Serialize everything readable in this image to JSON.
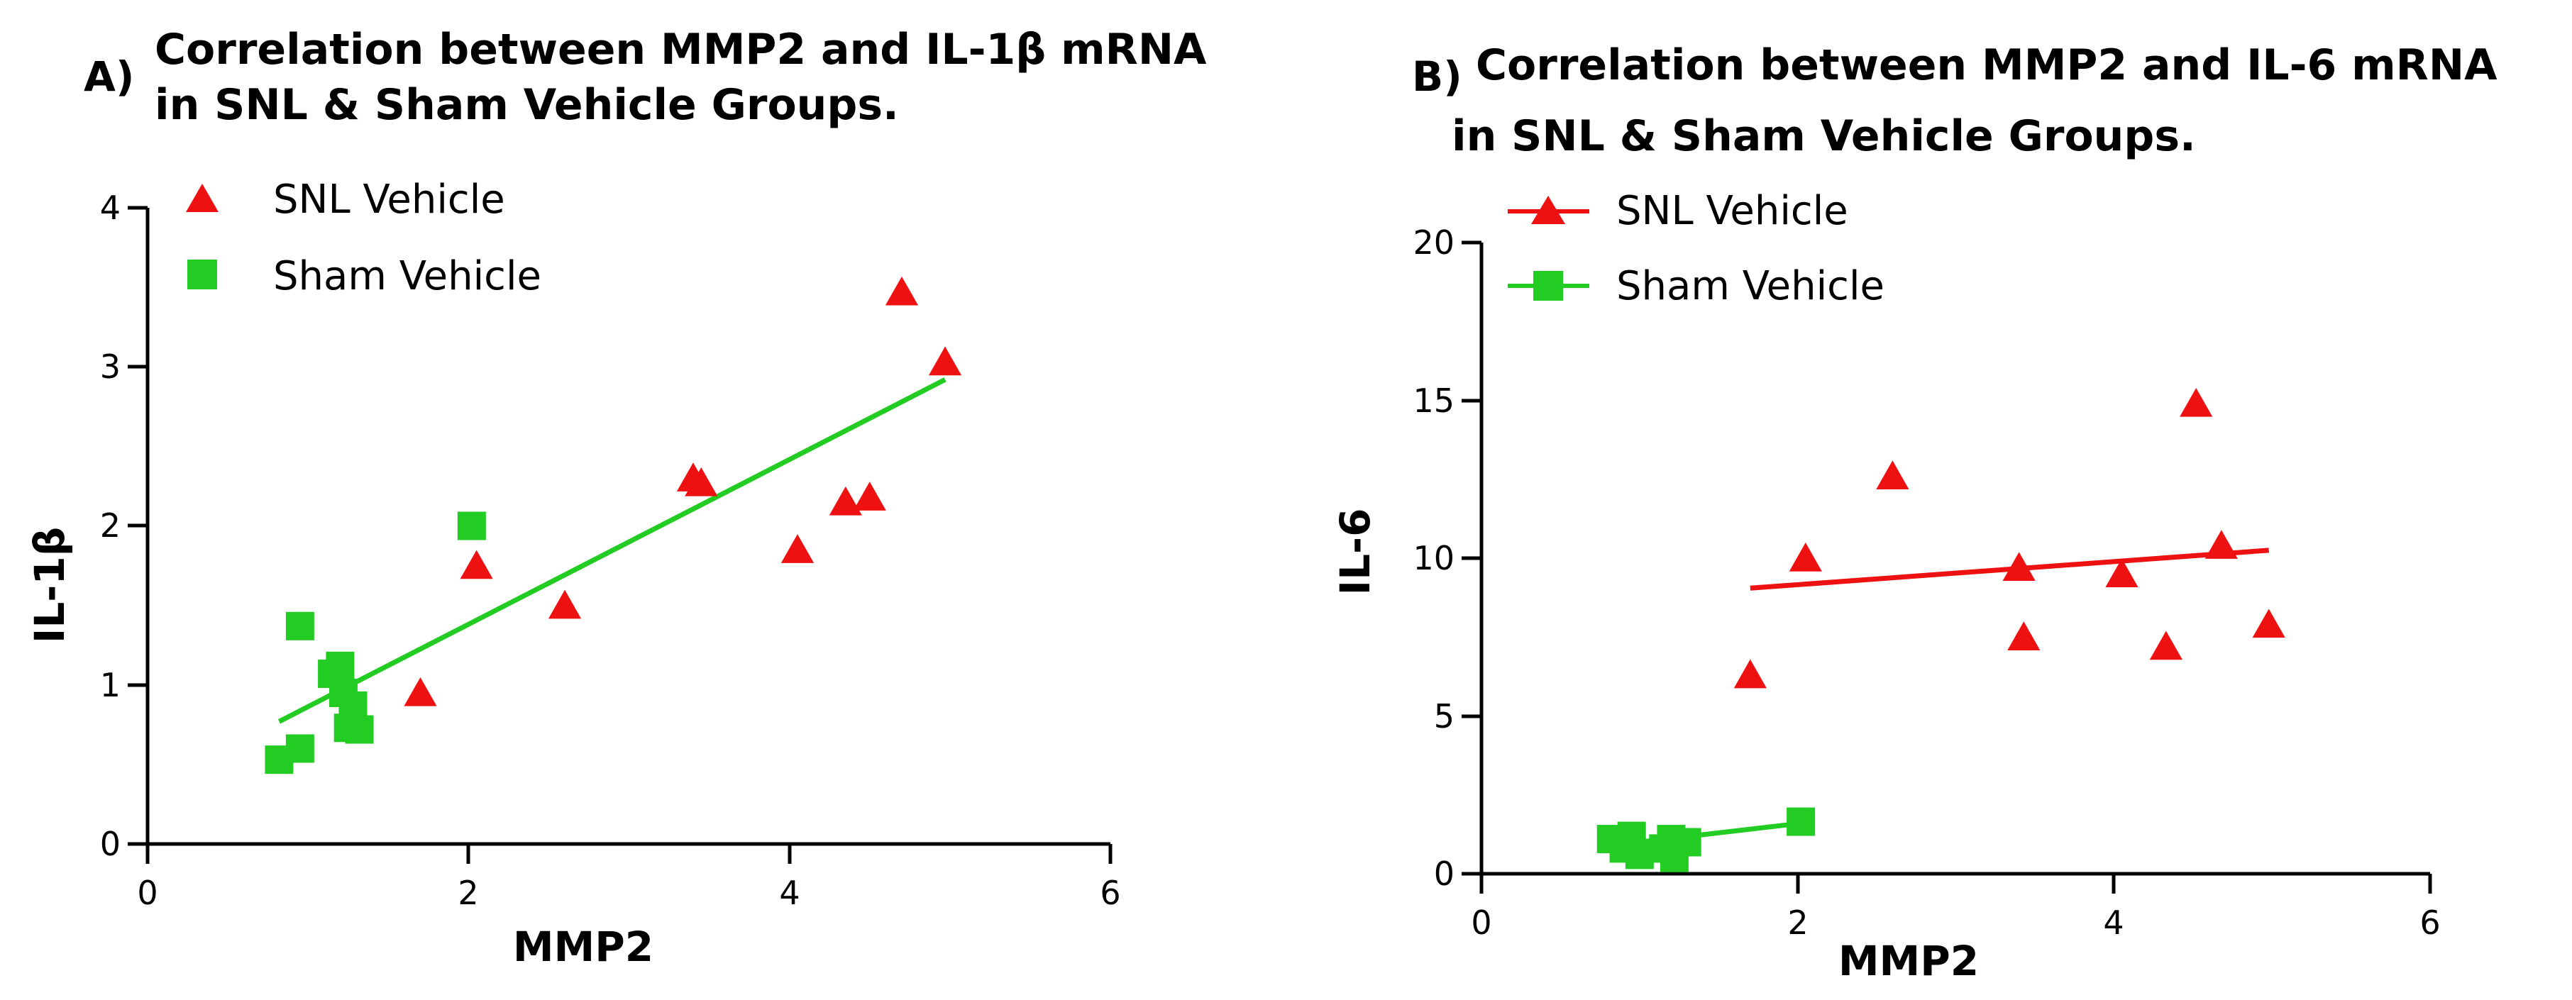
{
  "chart_data": [
    {
      "id": "A",
      "type": "scatter",
      "panel_label": "A)",
      "title_lines": [
        "Correlation between MMP2 and  IL-1β mRNA",
        "in SNL & Sham Vehicle Groups."
      ],
      "xlabel": "MMP2",
      "ylabel": "IL-1β",
      "xlim": [
        0,
        6
      ],
      "ylim": [
        0,
        4
      ],
      "xticks": [
        0,
        2,
        4,
        6
      ],
      "yticks": [
        0,
        1,
        2,
        3,
        4
      ],
      "legend": [
        {
          "label": "SNL Vehicle",
          "marker": "triangle",
          "color": "#ee1111",
          "line": false
        },
        {
          "label": "Sham Vehicle",
          "marker": "square",
          "color": "#22cc22",
          "line": false
        }
      ],
      "series": [
        {
          "name": "SNL Vehicle",
          "marker": "triangle",
          "color": "#ee1111",
          "x": [
            1.7,
            2.05,
            2.6,
            3.4,
            3.45,
            4.05,
            4.35,
            4.5,
            4.7,
            4.97
          ],
          "y": [
            0.95,
            1.75,
            1.5,
            2.3,
            2.27,
            1.85,
            2.15,
            2.18,
            3.47,
            3.03
          ]
        },
        {
          "name": "Sham Vehicle",
          "marker": "square",
          "color": "#22cc22",
          "x": [
            0.82,
            0.95,
            0.95,
            1.15,
            1.2,
            1.22,
            1.25,
            1.28,
            1.32,
            2.02
          ],
          "y": [
            0.53,
            0.6,
            1.37,
            1.07,
            1.12,
            0.95,
            0.73,
            0.87,
            0.72,
            2.0
          ]
        }
      ],
      "fit_lines": [
        {
          "series": "combined",
          "color": "#22cc22",
          "x": [
            0.82,
            4.97
          ],
          "y": [
            0.77,
            2.92
          ]
        }
      ]
    },
    {
      "id": "B",
      "type": "scatter",
      "panel_label": "B)",
      "title_lines": [
        "Correlation between MMP2 and  IL-6 mRNA",
        "in SNL & Sham Vehicle Groups."
      ],
      "xlabel": "MMP2",
      "ylabel": "IL-6",
      "xlim": [
        0,
        6
      ],
      "ylim": [
        0,
        20
      ],
      "xticks": [
        0,
        2,
        4,
        6
      ],
      "yticks": [
        0,
        5,
        10,
        15,
        20
      ],
      "legend": [
        {
          "label": "SNL Vehicle",
          "marker": "triangle",
          "color": "#ee1111",
          "line": true
        },
        {
          "label": "Sham Vehicle",
          "marker": "square",
          "color": "#22cc22",
          "line": true
        }
      ],
      "series": [
        {
          "name": "SNL Vehicle",
          "marker": "triangle",
          "color": "#ee1111",
          "x": [
            1.7,
            2.05,
            2.6,
            3.4,
            3.43,
            4.05,
            4.33,
            4.52,
            4.68,
            4.98
          ],
          "y": [
            6.3,
            10.0,
            12.6,
            9.7,
            7.5,
            9.5,
            7.2,
            14.9,
            10.4,
            7.9
          ]
        },
        {
          "name": "Sham Vehicle",
          "marker": "square",
          "color": "#22cc22",
          "x": [
            0.82,
            0.9,
            0.95,
            1.0,
            1.15,
            1.2,
            1.22,
            1.3,
            2.02
          ],
          "y": [
            1.1,
            0.8,
            1.2,
            0.6,
            0.8,
            1.1,
            0.5,
            1.0,
            1.65
          ]
        }
      ],
      "fit_lines": [
        {
          "series": "SNL Vehicle",
          "color": "#ee1111",
          "x": [
            1.7,
            4.98
          ],
          "y": [
            9.05,
            10.25
          ]
        },
        {
          "series": "Sham Vehicle",
          "color": "#22cc22",
          "x": [
            0.82,
            2.02
          ],
          "y": [
            0.9,
            1.6
          ]
        }
      ]
    }
  ]
}
